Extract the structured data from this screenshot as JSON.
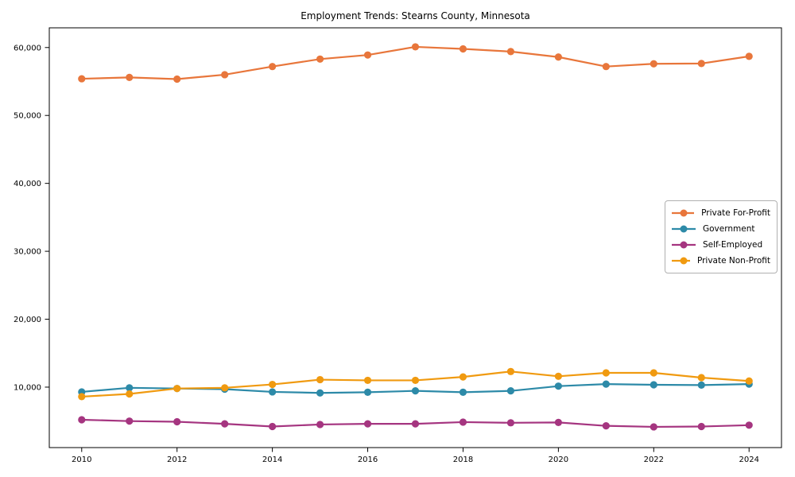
{
  "chart_data": {
    "type": "line",
    "title": "Employment Trends: Stearns County, Minnesota",
    "x": [
      2010,
      2011,
      2012,
      2013,
      2014,
      2015,
      2016,
      2017,
      2018,
      2019,
      2020,
      2021,
      2022,
      2023,
      2024
    ],
    "series": [
      {
        "name": "Private For-Profit",
        "color": "#e8763b",
        "values": [
          55400,
          55600,
          55350,
          56000,
          57200,
          58300,
          58900,
          60100,
          59800,
          59400,
          58600,
          57200,
          57600,
          57650,
          58700
        ]
      },
      {
        "name": "Government",
        "color": "#2d8aa8",
        "values": [
          9300,
          9900,
          9800,
          9700,
          9300,
          9150,
          9250,
          9450,
          9250,
          9450,
          10150,
          10450,
          10350,
          10300,
          10450
        ]
      },
      {
        "name": "Self-Employed",
        "color": "#a53580",
        "values": [
          5200,
          5000,
          4900,
          4600,
          4200,
          4500,
          4600,
          4600,
          4850,
          4750,
          4800,
          4300,
          4150,
          4200,
          4400
        ]
      },
      {
        "name": "Private Non-Profit",
        "color": "#f09a10",
        "values": [
          8600,
          9000,
          9800,
          9900,
          10400,
          11100,
          11000,
          11000,
          11500,
          12300,
          11600,
          12100,
          12100,
          11400,
          10900
        ]
      }
    ],
    "xtick_values": [
      2010,
      2012,
      2014,
      2016,
      2018,
      2020,
      2022,
      2024
    ],
    "xtick_labels": [
      "2010",
      "2012",
      "2014",
      "2016",
      "2018",
      "2020",
      "2022",
      "2024"
    ],
    "ytick_values": [
      10000,
      20000,
      30000,
      40000,
      50000,
      60000
    ],
    "ytick_labels": [
      "10,000",
      "20,000",
      "30,000",
      "40,000",
      "50,000",
      "60,000"
    ],
    "xlim": [
      2009.32,
      2024.68
    ],
    "ylim": [
      1100,
      62900
    ],
    "grid": false,
    "legend_position": "center-right",
    "background": "#ffffff",
    "axis_color": "#000000"
  }
}
